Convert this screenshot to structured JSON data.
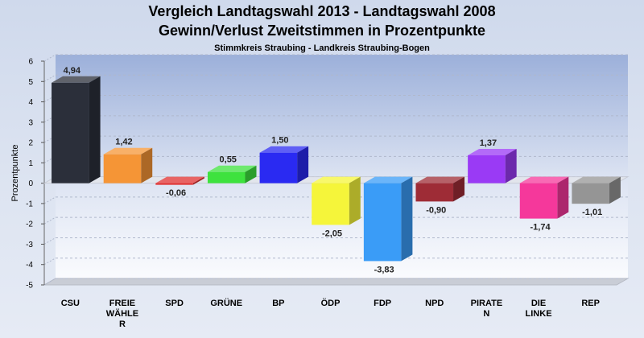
{
  "chart_data": {
    "type": "bar",
    "title": "Vergleich Landtagswahl 2013 - Landtagswahl 2008",
    "subtitle": "Gewinn/Verlust Zweitstimmen in Prozentpunkte",
    "caption": "Stimmkreis Straubing - Landkreis Straubing-Bogen",
    "ylabel": "Prozentpunkte",
    "ylim": [
      -5,
      6
    ],
    "yticks": [
      6,
      5,
      4,
      3,
      2,
      1,
      0,
      -1,
      -2,
      -3,
      -4,
      -5
    ],
    "categories": [
      [
        "CSU"
      ],
      [
        "FREIE",
        "WÄHLE",
        "R"
      ],
      [
        "SPD"
      ],
      [
        "GRÜNE"
      ],
      [
        "BP"
      ],
      [
        "ÖDP"
      ],
      [
        "FDP"
      ],
      [
        "NPD"
      ],
      [
        "PIRATE",
        "N"
      ],
      [
        "DIE",
        "LINKE"
      ],
      [
        "REP"
      ]
    ],
    "values": [
      4.94,
      1.42,
      -0.06,
      0.55,
      1.5,
      -2.05,
      -3.83,
      -0.9,
      1.37,
      -1.74,
      -1.01
    ],
    "value_labels": [
      "4,94",
      "1,42",
      "-0,06",
      "0,55",
      "1,50",
      "-2,05",
      "-3,83",
      "-0,90",
      "1,37",
      "-1,74",
      "-1,01"
    ],
    "colors": [
      "#2b2f3a",
      "#f59536",
      "#e03030",
      "#3ee23e",
      "#2a2af2",
      "#f5f53a",
      "#3a9cf7",
      "#9e2c36",
      "#9a3af5",
      "#f5389b",
      "#959595"
    ],
    "grid": true,
    "legend": "none"
  }
}
